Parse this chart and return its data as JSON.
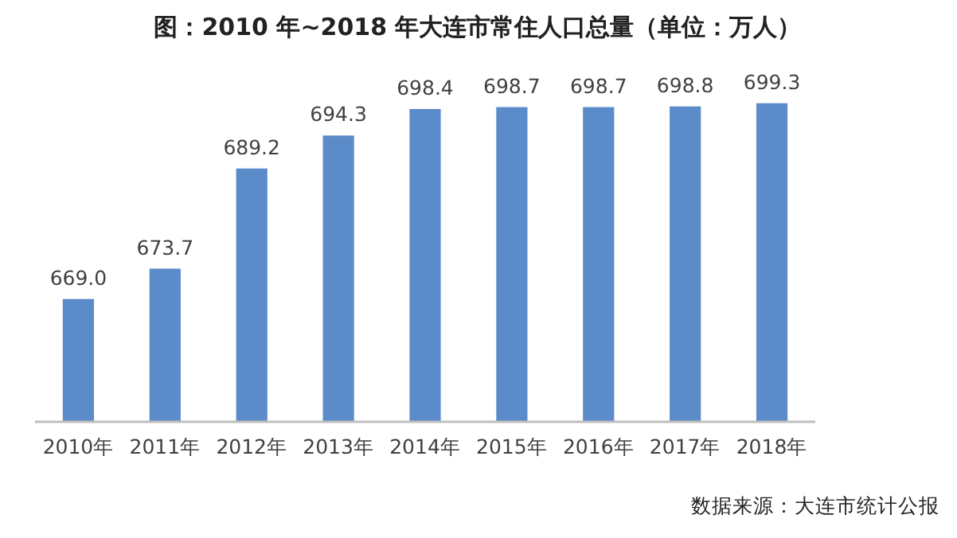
{
  "chart_data": {
    "type": "bar",
    "title": "图：2010 年~2018 年大连市常住人口总量（单位：万人）",
    "categories": [
      "2010年",
      "2011年",
      "2012年",
      "2013年",
      "2014年",
      "2015年",
      "2016年",
      "2017年",
      "2018年"
    ],
    "values": [
      669.0,
      673.7,
      689.2,
      694.3,
      698.4,
      698.7,
      698.7,
      698.8,
      699.3
    ],
    "value_labels": [
      "669.0",
      "673.7",
      "689.2",
      "694.3",
      "698.4",
      "698.7",
      "698.7",
      "698.8",
      "699.3"
    ],
    "color": "#5b8bc9",
    "ylim": [
      650,
      700
    ],
    "tick_labels": "x",
    "annotations": [
      "数据来源：大连市统计公报"
    ]
  }
}
